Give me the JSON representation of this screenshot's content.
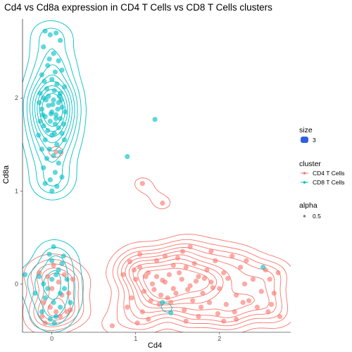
{
  "chart_data": {
    "type": "scatter",
    "title": "Cd4 vs Cd8a expression in CD4 T Cells vs CD8 T Cells clusters",
    "xlabel": "Cd4",
    "ylabel": "Cd8a",
    "xlim": [
      -0.35,
      2.85
    ],
    "ylim": [
      -0.52,
      2.85
    ],
    "x_ticks": [
      0,
      1,
      2
    ],
    "y_ticks": [
      0,
      1,
      2
    ],
    "grid": "none",
    "legend_position": "right",
    "legend": {
      "size": {
        "title": "size",
        "entries": [
          "3"
        ],
        "color": "#2f5fe0"
      },
      "cluster": {
        "title": "cluster",
        "entries": [
          "CD4 T Cells",
          "CD8 T Cells"
        ]
      },
      "alpha": {
        "title": "alpha",
        "entries": [
          "0.5"
        ]
      }
    },
    "series": [
      {
        "name": "CD4 T Cells",
        "color": "#F8766D",
        "points": [
          [
            1.05,
            0.18
          ],
          [
            1.15,
            0.12
          ],
          [
            1.25,
            0.08
          ],
          [
            1.35,
            0.02
          ],
          [
            1.45,
            -0.05
          ],
          [
            1.2,
            0.0
          ],
          [
            1.1,
            -0.08
          ],
          [
            1.3,
            -0.12
          ],
          [
            1.4,
            0.1
          ],
          [
            1.55,
            0.05
          ],
          [
            1.65,
            -0.02
          ],
          [
            1.75,
            0.08
          ],
          [
            1.8,
            -0.1
          ],
          [
            1.9,
            0.02
          ],
          [
            2.0,
            -0.05
          ],
          [
            2.1,
            0.06
          ],
          [
            2.2,
            -0.12
          ],
          [
            2.3,
            0.0
          ],
          [
            2.35,
            -0.18
          ],
          [
            2.5,
            -0.08
          ],
          [
            2.6,
            0.05
          ],
          [
            2.65,
            -0.1
          ],
          [
            2.7,
            0.12
          ],
          [
            1.0,
            0.05
          ],
          [
            0.95,
            -0.15
          ],
          [
            0.85,
            0.1
          ],
          [
            0.9,
            -0.25
          ],
          [
            0.72,
            -0.45
          ],
          [
            1.5,
            0.28
          ],
          [
            1.6,
            0.18
          ],
          [
            1.7,
            0.22
          ],
          [
            1.85,
            0.15
          ],
          [
            1.95,
            0.25
          ],
          [
            2.05,
            0.12
          ],
          [
            2.15,
            0.3
          ],
          [
            1.25,
            0.25
          ],
          [
            1.35,
            0.3
          ],
          [
            1.42,
            -0.2
          ],
          [
            1.58,
            -0.28
          ],
          [
            1.68,
            -0.18
          ],
          [
            1.78,
            -0.25
          ],
          [
            1.88,
            -0.2
          ],
          [
            1.98,
            -0.32
          ],
          [
            2.08,
            -0.22
          ],
          [
            2.18,
            -0.3
          ],
          [
            2.28,
            -0.2
          ],
          [
            1.12,
            0.08
          ],
          [
            1.22,
            -0.06
          ],
          [
            1.32,
            0.04
          ],
          [
            1.48,
            -0.1
          ],
          [
            1.52,
            0.12
          ],
          [
            1.62,
            -0.06
          ],
          [
            1.72,
            0.03
          ],
          [
            1.82,
            0.06
          ],
          [
            1.92,
            -0.04
          ],
          [
            1.18,
            -0.18
          ],
          [
            1.28,
            -0.22
          ],
          [
            1.38,
            -0.15
          ],
          [
            1.08,
            -0.3
          ],
          [
            2.4,
            0.05
          ],
          [
            2.55,
            0.15
          ],
          [
            2.45,
            -0.25
          ],
          [
            2.62,
            -0.22
          ],
          [
            2.25,
            0.18
          ],
          [
            2.32,
            0.25
          ],
          [
            1.45,
            0.2
          ],
          [
            1.56,
            0.35
          ],
          [
            1.05,
            0.32
          ],
          [
            0.98,
            0.15
          ],
          [
            1.15,
            -0.38
          ],
          [
            2.2,
            -0.38
          ],
          [
            1.65,
            0.4
          ],
          [
            1.75,
            -0.35
          ],
          [
            2.72,
            -0.35
          ],
          [
            1.02,
            -0.42
          ],
          [
            0.93,
            0.24
          ],
          [
            1.9,
            0.35
          ],
          [
            2.58,
            -0.3
          ],
          [
            1.6,
            -0.4
          ],
          [
            2.05,
            -0.4
          ],
          [
            0.0,
            -0.05
          ],
          [
            -0.05,
            0.08
          ],
          [
            0.08,
            0.02
          ],
          [
            0.12,
            -0.12
          ],
          [
            -0.1,
            -0.2
          ],
          [
            0.05,
            -0.3
          ],
          [
            0.15,
            0.1
          ],
          [
            -0.02,
            -0.25
          ],
          [
            0.2,
            -0.1
          ],
          [
            -0.15,
            0.12
          ],
          [
            0.1,
            -0.35
          ],
          [
            0.25,
            0.05
          ],
          [
            -0.08,
            -0.42
          ],
          [
            0.18,
            -0.3
          ],
          [
            0.02,
            0.2
          ],
          [
            0.22,
            -0.28
          ],
          [
            -0.12,
            -0.35
          ],
          [
            1.08,
            1.08
          ],
          [
            1.32,
            0.87
          ],
          [
            0.05,
            1.42
          ]
        ]
      },
      {
        "name": "CD8 T Cells",
        "color": "#00BFC4",
        "points": [
          [
            -0.08,
            2.72
          ],
          [
            -0.02,
            2.68
          ],
          [
            0.05,
            2.7
          ],
          [
            0.1,
            2.62
          ],
          [
            -0.1,
            2.55
          ],
          [
            0.02,
            2.48
          ],
          [
            0.08,
            2.4
          ],
          [
            -0.05,
            2.35
          ],
          [
            0.12,
            2.3
          ],
          [
            -0.12,
            2.25
          ],
          [
            0.0,
            2.2
          ],
          [
            0.06,
            2.15
          ],
          [
            -0.06,
            2.1
          ],
          [
            0.1,
            2.05
          ],
          [
            -0.1,
            2.0
          ],
          [
            0.02,
            1.98
          ],
          [
            0.08,
            1.95
          ],
          [
            -0.04,
            1.92
          ],
          [
            0.12,
            1.9
          ],
          [
            -0.12,
            1.88
          ],
          [
            0.0,
            1.85
          ],
          [
            0.05,
            1.82
          ],
          [
            -0.08,
            1.8
          ],
          [
            0.1,
            1.78
          ],
          [
            -0.02,
            1.75
          ],
          [
            0.04,
            1.72
          ],
          [
            -0.1,
            1.7
          ],
          [
            0.08,
            1.68
          ],
          [
            -0.05,
            1.65
          ],
          [
            0.12,
            1.62
          ],
          [
            0.0,
            1.6
          ],
          [
            -0.08,
            1.55
          ],
          [
            0.06,
            1.5
          ],
          [
            -0.12,
            1.45
          ],
          [
            0.1,
            1.42
          ],
          [
            0.02,
            1.38
          ],
          [
            -0.06,
            1.35
          ],
          [
            0.08,
            1.3
          ],
          [
            -0.1,
            1.25
          ],
          [
            0.04,
            1.2
          ],
          [
            0.12,
            1.15
          ],
          [
            -0.02,
            1.12
          ],
          [
            -0.08,
            1.08
          ],
          [
            0.06,
            1.05
          ],
          [
            0.0,
            1.0
          ],
          [
            -0.14,
            2.05
          ],
          [
            0.15,
            2.12
          ],
          [
            -0.15,
            1.95
          ],
          [
            0.16,
            1.85
          ],
          [
            -0.14,
            1.75
          ],
          [
            0.14,
            1.72
          ],
          [
            -0.16,
            1.6
          ],
          [
            0.15,
            1.55
          ],
          [
            0.04,
            2.28
          ],
          [
            -0.03,
            2.42
          ],
          [
            0.07,
            1.88
          ],
          [
            -0.07,
            1.98
          ],
          [
            0.03,
            1.62
          ],
          [
            -0.03,
            1.45
          ],
          [
            0.09,
            2.02
          ],
          [
            -0.09,
            2.18
          ],
          [
            0.01,
            1.93
          ],
          [
            0.05,
            1.78
          ],
          [
            -0.01,
            1.83
          ],
          [
            0.03,
            2.08
          ],
          [
            -0.04,
            2.02
          ],
          [
            0.11,
            1.98
          ],
          [
            -0.11,
            1.82
          ],
          [
            0.0,
            0.05
          ],
          [
            -0.05,
            -0.05
          ],
          [
            0.05,
            0.1
          ],
          [
            0.1,
            -0.1
          ],
          [
            -0.1,
            0.0
          ],
          [
            0.02,
            -0.2
          ],
          [
            0.08,
            0.15
          ],
          [
            -0.08,
            -0.15
          ],
          [
            0.15,
            -0.05
          ],
          [
            -0.15,
            0.08
          ],
          [
            0.0,
            0.25
          ],
          [
            0.05,
            -0.35
          ],
          [
            -0.03,
            0.32
          ],
          [
            0.12,
            0.22
          ],
          [
            -0.12,
            -0.3
          ],
          [
            0.18,
            0.05
          ],
          [
            -0.2,
            -0.1
          ],
          [
            0.22,
            -0.2
          ],
          [
            -0.32,
            0.1
          ],
          [
            0.03,
            -0.42
          ],
          [
            0.02,
            0.4
          ],
          [
            -0.02,
            -0.38
          ],
          [
            0.1,
            -0.25
          ],
          [
            0.14,
            0.3
          ],
          [
            1.23,
            1.77
          ],
          [
            0.9,
            1.37
          ],
          [
            2.52,
            0.18
          ],
          [
            1.42,
            -0.31
          ],
          [
            1.32,
            -0.2
          ]
        ]
      }
    ]
  }
}
